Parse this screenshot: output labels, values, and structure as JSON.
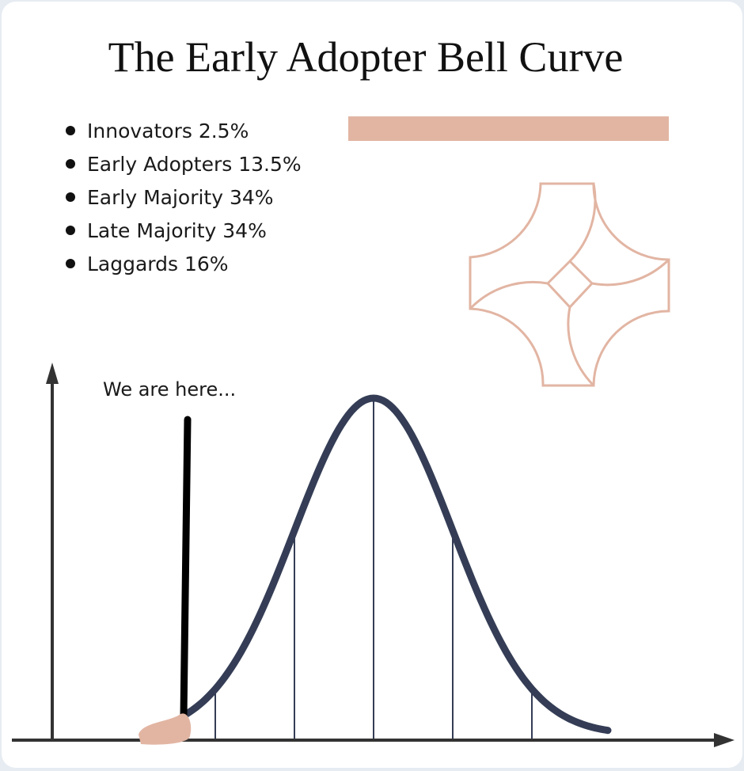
{
  "title": "The Early Adopter Bell Curve",
  "list": [
    "Innovators 2.5%",
    "Early Adopters 13.5%",
    "Early Majority 34%",
    "Late Majority 34%",
    "Laggards 16%"
  ],
  "annotation": "We are here..."
}
